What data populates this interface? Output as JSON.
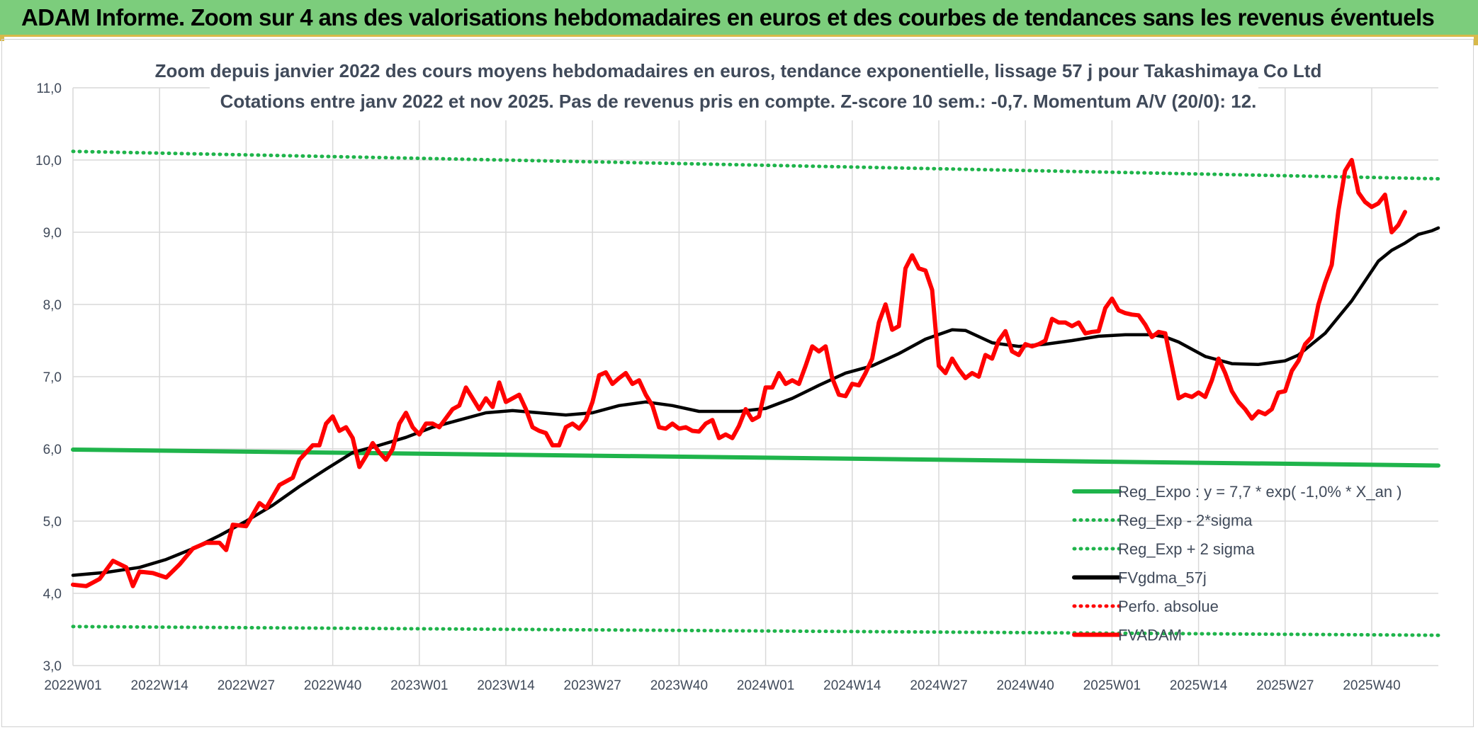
{
  "banner": {
    "title": "ADAM Informe. Zoom sur 4 ans des valorisations hebdomadaires en euros et des courbes de tendances sans les revenus éventuels"
  },
  "colors": {
    "banner_bg": "#7ccd7c",
    "green": "#1fb44b",
    "red": "#ff0000",
    "black": "#000000",
    "grid": "#d9d9d9",
    "text": "#404a5a"
  },
  "chart_data": {
    "type": "line",
    "title_lines": [
      "Zoom depuis janvier 2022 des cours moyens hebdomadaires en euros, tendance exponentielle, lissage 57 j pour Takashimaya Co Ltd",
      "Cotations entre janv 2022 et nov 2025. Pas de revenus pris en compte. Z-score 10 sem.: -0,7. Momentum A/V (20/0): 12."
    ],
    "ylim": [
      3.0,
      11.0
    ],
    "yticks": [
      "3,0",
      "4,0",
      "5,0",
      "6,0",
      "7,0",
      "8,0",
      "9,0",
      "10,0",
      "11,0"
    ],
    "xticks": [
      {
        "label": "2022W01",
        "week": 0
      },
      {
        "label": "2022W14",
        "week": 13
      },
      {
        "label": "2022W27",
        "week": 26
      },
      {
        "label": "2022W40",
        "week": 39
      },
      {
        "label": "2023W01",
        "week": 52
      },
      {
        "label": "2023W14",
        "week": 65
      },
      {
        "label": "2023W27",
        "week": 78
      },
      {
        "label": "2023W40",
        "week": 91
      },
      {
        "label": "2024W01",
        "week": 104
      },
      {
        "label": "2024W14",
        "week": 117
      },
      {
        "label": "2024W27",
        "week": 130
      },
      {
        "label": "2024W40",
        "week": 143
      },
      {
        "label": "2025W01",
        "week": 156
      },
      {
        "label": "2025W14",
        "week": 169
      },
      {
        "label": "2025W27",
        "week": 182
      },
      {
        "label": "2025W40",
        "week": 195
      }
    ],
    "x_range_weeks": [
      0,
      205
    ],
    "legend": [
      {
        "label": "Reg_Expo : y = 7,7 * exp( -1,0% *  X_an )",
        "style": "solid",
        "color": "#1fb44b"
      },
      {
        "label": "Reg_Exp - 2*sigma",
        "style": "dotted",
        "color": "#1fb44b"
      },
      {
        "label": "Reg_Exp + 2 sigma",
        "style": "dotted",
        "color": "#1fb44b"
      },
      {
        "label": "FVgdma_57j",
        "style": "solid",
        "color": "#000000"
      },
      {
        "label": "Perfo. absolue",
        "style": "dotted",
        "color": "#ff0000"
      },
      {
        "label": "FVADAM",
        "style": "solid",
        "color": "#ff0000"
      }
    ],
    "series": [
      {
        "name": "Reg_Expo : y = 7,7 * exp( -1,0% *  X_an )",
        "points": [
          [
            0,
            5.99
          ],
          [
            205,
            5.77
          ]
        ]
      },
      {
        "name": "Reg_Exp - 2*sigma",
        "points": [
          [
            0,
            3.54
          ],
          [
            205,
            3.42
          ]
        ]
      },
      {
        "name": "Reg_Exp + 2 sigma",
        "points": [
          [
            0,
            10.12
          ],
          [
            205,
            9.74
          ]
        ]
      },
      {
        "name": "FVgdma_57j",
        "points": [
          [
            0,
            4.25
          ],
          [
            5,
            4.29
          ],
          [
            10,
            4.36
          ],
          [
            14,
            4.47
          ],
          [
            18,
            4.62
          ],
          [
            22,
            4.8
          ],
          [
            26,
            5.0
          ],
          [
            30,
            5.22
          ],
          [
            34,
            5.48
          ],
          [
            38,
            5.72
          ],
          [
            42,
            5.95
          ],
          [
            46,
            6.05
          ],
          [
            50,
            6.16
          ],
          [
            54,
            6.3
          ],
          [
            58,
            6.4
          ],
          [
            62,
            6.5
          ],
          [
            66,
            6.53
          ],
          [
            70,
            6.5
          ],
          [
            74,
            6.47
          ],
          [
            78,
            6.5
          ],
          [
            82,
            6.6
          ],
          [
            86,
            6.65
          ],
          [
            90,
            6.6
          ],
          [
            94,
            6.52
          ],
          [
            100,
            6.52
          ],
          [
            104,
            6.56
          ],
          [
            108,
            6.7
          ],
          [
            112,
            6.88
          ],
          [
            116,
            7.05
          ],
          [
            120,
            7.15
          ],
          [
            124,
            7.32
          ],
          [
            128,
            7.52
          ],
          [
            132,
            7.65
          ],
          [
            134,
            7.64
          ],
          [
            138,
            7.47
          ],
          [
            142,
            7.42
          ],
          [
            146,
            7.45
          ],
          [
            150,
            7.5
          ],
          [
            154,
            7.56
          ],
          [
            158,
            7.58
          ],
          [
            162,
            7.58
          ],
          [
            164,
            7.55
          ],
          [
            166,
            7.48
          ],
          [
            170,
            7.28
          ],
          [
            174,
            7.18
          ],
          [
            178,
            7.17
          ],
          [
            182,
            7.22
          ],
          [
            184,
            7.3
          ],
          [
            188,
            7.6
          ],
          [
            192,
            8.05
          ],
          [
            196,
            8.6
          ],
          [
            198,
            8.75
          ],
          [
            200,
            8.85
          ],
          [
            202,
            8.97
          ],
          [
            204,
            9.02
          ],
          [
            205,
            9.06
          ]
        ]
      },
      {
        "name": "FVADAM",
        "points": [
          [
            0,
            4.12
          ],
          [
            2,
            4.1
          ],
          [
            4,
            4.2
          ],
          [
            6,
            4.45
          ],
          [
            8,
            4.36
          ],
          [
            9,
            4.1
          ],
          [
            10,
            4.3
          ],
          [
            12,
            4.28
          ],
          [
            14,
            4.22
          ],
          [
            16,
            4.4
          ],
          [
            18,
            4.62
          ],
          [
            20,
            4.7
          ],
          [
            22,
            4.7
          ],
          [
            23,
            4.6
          ],
          [
            24,
            4.95
          ],
          [
            26,
            4.93
          ],
          [
            28,
            5.25
          ],
          [
            29,
            5.18
          ],
          [
            31,
            5.5
          ],
          [
            33,
            5.6
          ],
          [
            34,
            5.85
          ],
          [
            36,
            6.05
          ],
          [
            37,
            6.05
          ],
          [
            38,
            6.35
          ],
          [
            39,
            6.45
          ],
          [
            40,
            6.25
          ],
          [
            41,
            6.3
          ],
          [
            42,
            6.15
          ],
          [
            43,
            5.75
          ],
          [
            44,
            5.9
          ],
          [
            45,
            6.08
          ],
          [
            46,
            5.95
          ],
          [
            47,
            5.85
          ],
          [
            48,
            6.0
          ],
          [
            49,
            6.35
          ],
          [
            50,
            6.5
          ],
          [
            51,
            6.3
          ],
          [
            52,
            6.2
          ],
          [
            53,
            6.35
          ],
          [
            54,
            6.35
          ],
          [
            55,
            6.3
          ],
          [
            57,
            6.55
          ],
          [
            58,
            6.6
          ],
          [
            59,
            6.85
          ],
          [
            60,
            6.7
          ],
          [
            61,
            6.55
          ],
          [
            62,
            6.7
          ],
          [
            63,
            6.58
          ],
          [
            64,
            6.92
          ],
          [
            65,
            6.65
          ],
          [
            66,
            6.7
          ],
          [
            67,
            6.75
          ],
          [
            68,
            6.55
          ],
          [
            69,
            6.3
          ],
          [
            70,
            6.25
          ],
          [
            71,
            6.22
          ],
          [
            72,
            6.05
          ],
          [
            73,
            6.05
          ],
          [
            74,
            6.3
          ],
          [
            75,
            6.35
          ],
          [
            76,
            6.28
          ],
          [
            77,
            6.4
          ],
          [
            78,
            6.65
          ],
          [
            79,
            7.02
          ],
          [
            80,
            7.06
          ],
          [
            81,
            6.9
          ],
          [
            82,
            6.98
          ],
          [
            83,
            7.05
          ],
          [
            84,
            6.9
          ],
          [
            85,
            6.95
          ],
          [
            86,
            6.75
          ],
          [
            87,
            6.6
          ],
          [
            88,
            6.3
          ],
          [
            89,
            6.28
          ],
          [
            90,
            6.35
          ],
          [
            91,
            6.28
          ],
          [
            92,
            6.3
          ],
          [
            93,
            6.25
          ],
          [
            94,
            6.24
          ],
          [
            95,
            6.35
          ],
          [
            96,
            6.4
          ],
          [
            97,
            6.15
          ],
          [
            98,
            6.2
          ],
          [
            99,
            6.15
          ],
          [
            100,
            6.32
          ],
          [
            101,
            6.55
          ],
          [
            102,
            6.4
          ],
          [
            103,
            6.45
          ],
          [
            104,
            6.85
          ],
          [
            105,
            6.85
          ],
          [
            106,
            7.05
          ],
          [
            107,
            6.9
          ],
          [
            108,
            6.95
          ],
          [
            109,
            6.9
          ],
          [
            110,
            7.15
          ],
          [
            111,
            7.42
          ],
          [
            112,
            7.35
          ],
          [
            113,
            7.42
          ],
          [
            114,
            6.98
          ],
          [
            115,
            6.75
          ],
          [
            116,
            6.73
          ],
          [
            117,
            6.9
          ],
          [
            118,
            6.88
          ],
          [
            119,
            7.05
          ],
          [
            120,
            7.25
          ],
          [
            121,
            7.75
          ],
          [
            122,
            8.0
          ],
          [
            123,
            7.65
          ],
          [
            124,
            7.7
          ],
          [
            125,
            8.5
          ],
          [
            126,
            8.68
          ],
          [
            127,
            8.5
          ],
          [
            128,
            8.47
          ],
          [
            129,
            8.2
          ],
          [
            130,
            7.15
          ],
          [
            131,
            7.05
          ],
          [
            132,
            7.25
          ],
          [
            133,
            7.1
          ],
          [
            134,
            6.98
          ],
          [
            135,
            7.05
          ],
          [
            136,
            7.0
          ],
          [
            137,
            7.3
          ],
          [
            138,
            7.25
          ],
          [
            139,
            7.5
          ],
          [
            140,
            7.63
          ],
          [
            141,
            7.35
          ],
          [
            142,
            7.3
          ],
          [
            143,
            7.45
          ],
          [
            144,
            7.42
          ],
          [
            145,
            7.45
          ],
          [
            146,
            7.5
          ],
          [
            147,
            7.8
          ],
          [
            148,
            7.75
          ],
          [
            149,
            7.75
          ],
          [
            150,
            7.7
          ],
          [
            151,
            7.75
          ],
          [
            152,
            7.6
          ],
          [
            153,
            7.62
          ],
          [
            154,
            7.63
          ],
          [
            155,
            7.95
          ],
          [
            156,
            8.08
          ],
          [
            157,
            7.92
          ],
          [
            158,
            7.88
          ],
          [
            159,
            7.86
          ],
          [
            160,
            7.85
          ],
          [
            161,
            7.72
          ],
          [
            162,
            7.55
          ],
          [
            163,
            7.62
          ],
          [
            164,
            7.6
          ],
          [
            165,
            7.15
          ],
          [
            166,
            6.7
          ],
          [
            167,
            6.75
          ],
          [
            168,
            6.72
          ],
          [
            169,
            6.78
          ],
          [
            170,
            6.72
          ],
          [
            171,
            6.95
          ],
          [
            172,
            7.25
          ],
          [
            173,
            7.05
          ],
          [
            174,
            6.8
          ],
          [
            175,
            6.65
          ],
          [
            176,
            6.55
          ],
          [
            177,
            6.42
          ],
          [
            178,
            6.52
          ],
          [
            179,
            6.48
          ],
          [
            180,
            6.55
          ],
          [
            181,
            6.78
          ],
          [
            182,
            6.8
          ],
          [
            183,
            7.08
          ],
          [
            184,
            7.22
          ],
          [
            185,
            7.45
          ],
          [
            186,
            7.55
          ],
          [
            187,
            8.0
          ],
          [
            188,
            8.3
          ],
          [
            189,
            8.55
          ],
          [
            190,
            9.3
          ],
          [
            191,
            9.85
          ],
          [
            192,
            10.0
          ],
          [
            193,
            9.55
          ],
          [
            194,
            9.42
          ],
          [
            195,
            9.35
          ],
          [
            196,
            9.4
          ],
          [
            197,
            9.52
          ],
          [
            198,
            9.0
          ],
          [
            199,
            9.1
          ],
          [
            200,
            9.28
          ]
        ]
      }
    ]
  }
}
